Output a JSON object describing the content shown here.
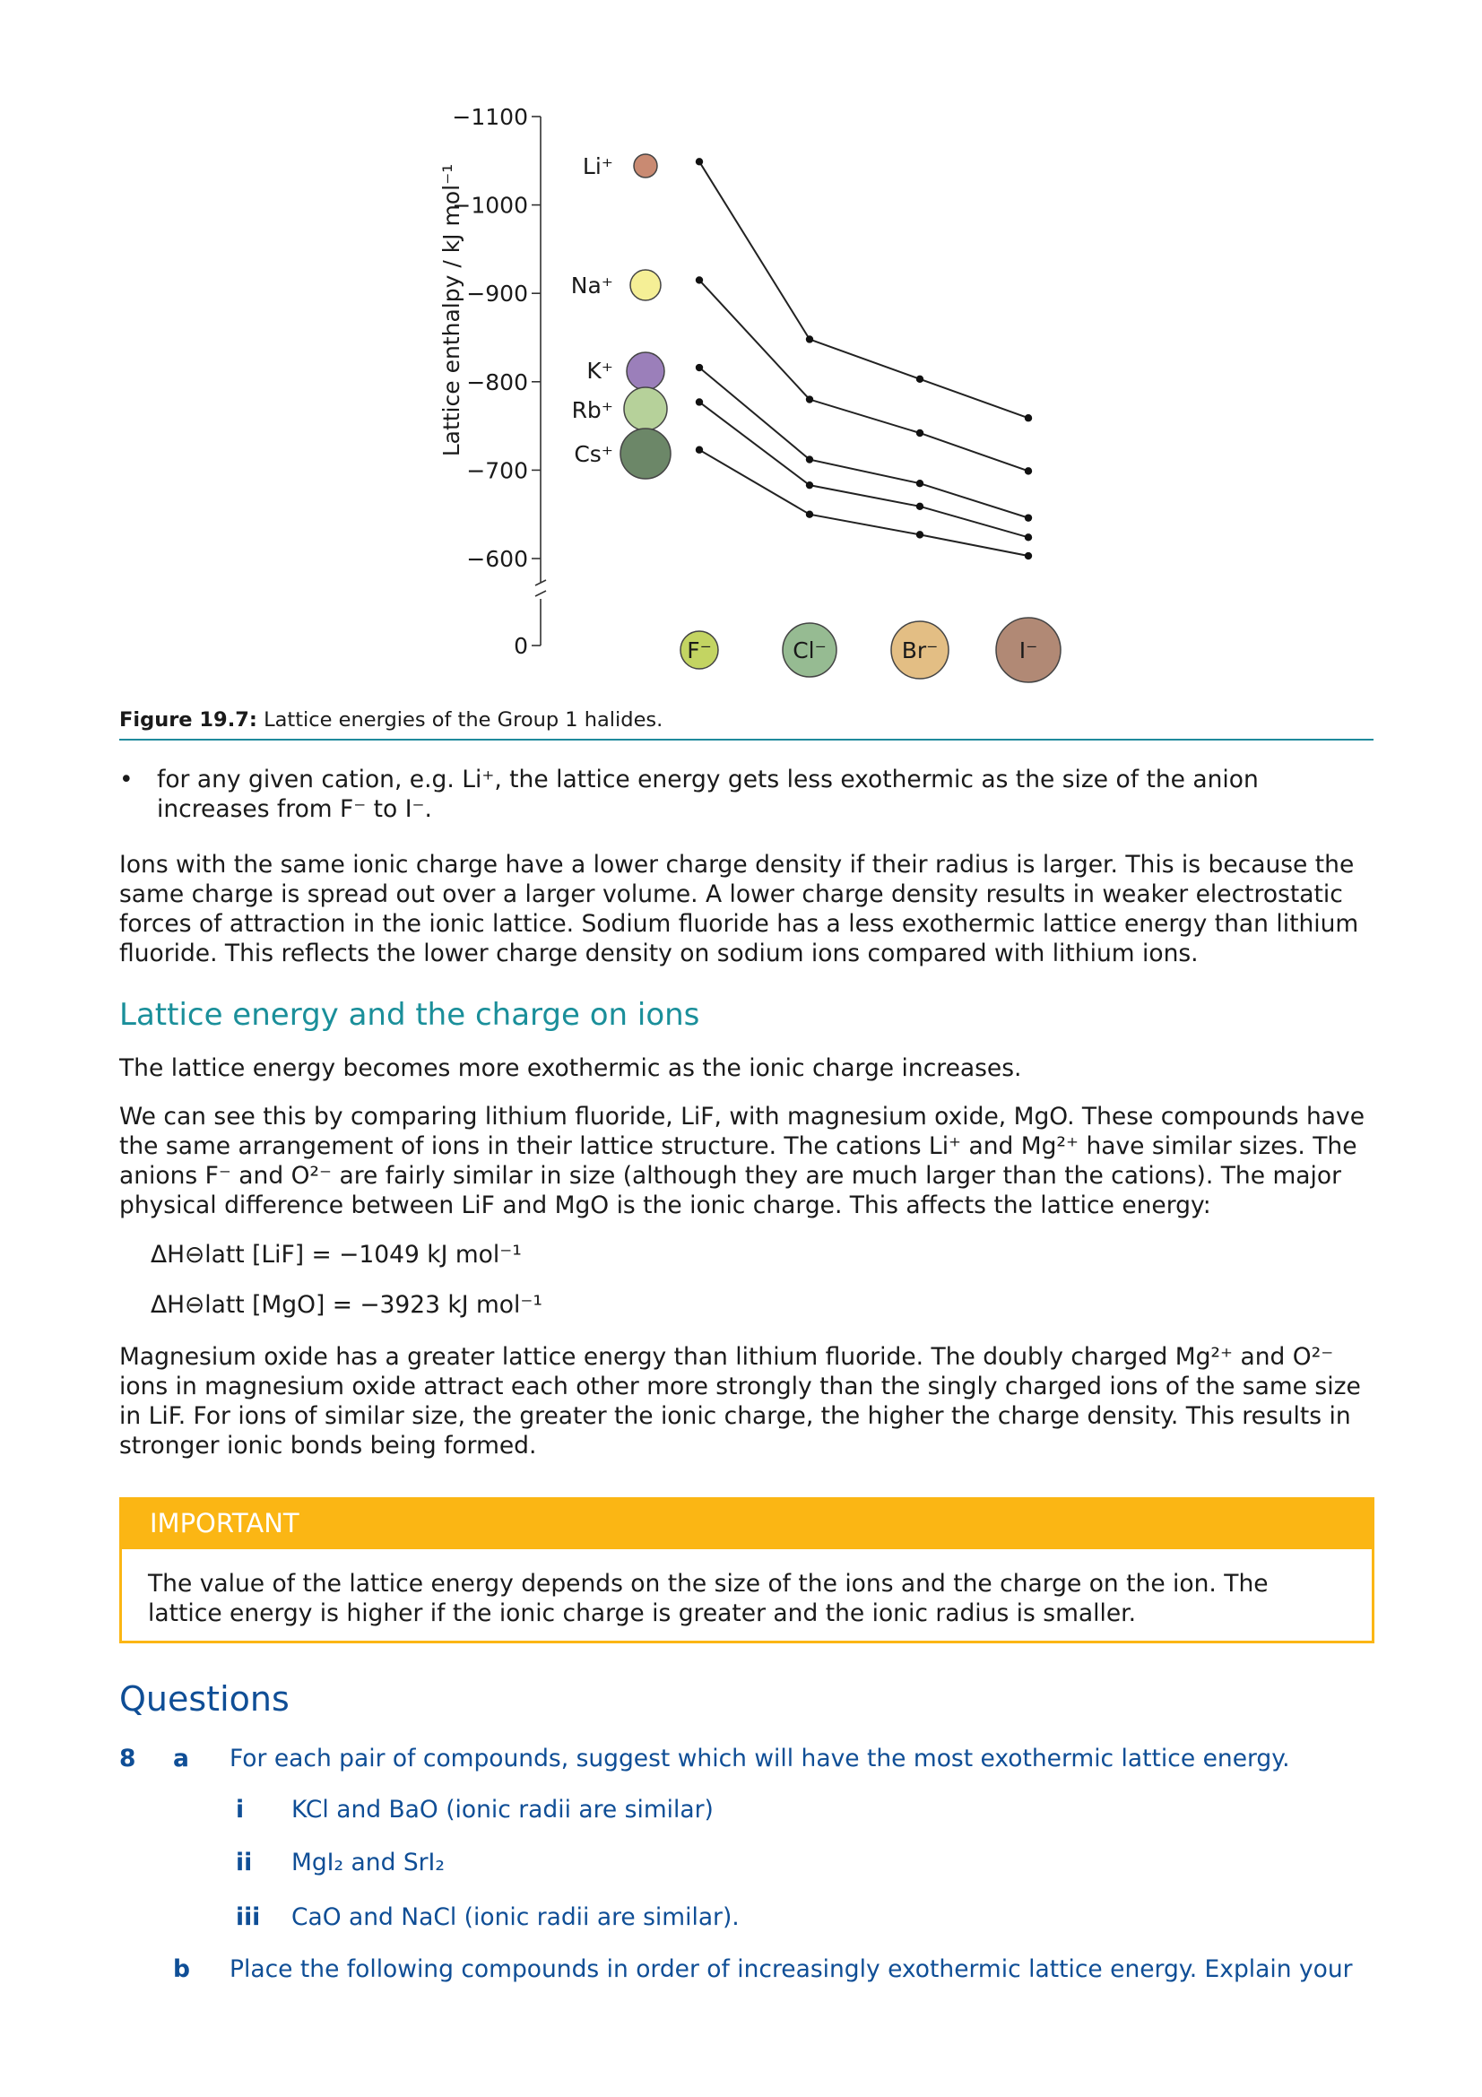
{
  "chart_data": {
    "type": "line",
    "ylabel": "Lattice enthalpy / kJ mol⁻¹",
    "yticks": [
      "−1100",
      "−1000",
      "−900",
      "−800",
      "−700",
      "−600",
      "0"
    ],
    "y_axis_break": true,
    "categories": [
      "F⁻",
      "Cl⁻",
      "Br⁻",
      "I⁻"
    ],
    "series": [
      {
        "name": "Li⁺",
        "values": [
          -1049,
          -848,
          -803,
          -759
        ],
        "color": "#c98a72",
        "radius": 13
      },
      {
        "name": "Na⁺",
        "values": [
          -915,
          -780,
          -742,
          -699
        ],
        "color": "#f5ef96",
        "radius": 17
      },
      {
        "name": "K⁺",
        "values": [
          -816,
          -712,
          -685,
          -646
        ],
        "color": "#9b7fba",
        "radius": 21
      },
      {
        "name": "Rb⁺",
        "values": [
          -777,
          -683,
          -659,
          -624
        ],
        "color": "#b6d19a",
        "radius": 24
      },
      {
        "name": "Cs⁺",
        "values": [
          -723,
          -650,
          -627,
          -603
        ],
        "color": "#6c8768",
        "radius": 28
      }
    ],
    "anions": [
      {
        "label": "F⁻",
        "color": "#c3d462",
        "radius": 21
      },
      {
        "label": "Cl⁻",
        "color": "#96bb92",
        "radius": 30
      },
      {
        "label": "Br⁻",
        "color": "#e3be84",
        "radius": 32
      },
      {
        "label": "I⁻",
        "color": "#b18975",
        "radius": 36
      }
    ]
  },
  "figure": {
    "label": "Figure 19.7:",
    "caption": "Lattice energies of the Group 1 halides."
  },
  "text": {
    "bullet_symbol": "•",
    "bullet": "for any given cation, e.g. Li⁺, the lattice energy gets less exothermic as the size of the anion increases from F⁻ to I⁻.",
    "para1": "Ions with the same ionic charge have a lower charge density if their radius is larger. This is because the same charge is spread out over a larger volume. A lower charge density results in weaker electrostatic forces of attraction in the ionic lattice. Sodium fluoride has a less exothermic lattice energy than lithium fluoride. This reflects the lower charge density on sodium ions compared with lithium ions.",
    "heading": "Lattice energy and the charge on ions",
    "para2": "The lattice energy becomes more exothermic as the ionic charge increases.",
    "para3": "We can see this by comparing lithium fluoride, LiF, with magnesium oxide, MgO. These compounds have the same arrangement of ions in their lattice structure. The cations Li⁺ and Mg²⁺ have similar sizes. The anions F⁻ and O²⁻ are fairly similar in size (although they are much larger than the cations). The major physical difference between LiF and MgO is the ionic charge. This affects the lattice energy:",
    "eq1": "ΔH⊖latt [LiF] = −1049 kJ mol⁻¹",
    "eq2": "ΔH⊖latt [MgO] = −3923 kJ mol⁻¹",
    "para4": "Magnesium oxide has a greater lattice energy than lithium fluoride. The doubly charged Mg²⁺ and O²⁻ ions in magnesium oxide attract each other more strongly than the singly charged ions of the same size in LiF. For ions of similar size, the greater the ionic charge, the higher the charge density. This results in stronger ionic bonds being formed."
  },
  "important": {
    "title": "IMPORTANT",
    "body": "The value of the lattice energy depends on the size of the ions and the charge on the ion. The lattice energy is higher if the ionic charge is greater and the ionic radius is smaller."
  },
  "questions": {
    "heading": "Questions",
    "q8_num": "8",
    "a_label": "a",
    "a_text": "For each pair of compounds, suggest which will have the most exothermic lattice energy.",
    "i_label": "i",
    "i_text": "KCl and BaO (ionic radii are similar)",
    "ii_label": "ii",
    "ii_text": "MgI₂ and SrI₂",
    "iii_label": "iii",
    "iii_text": "CaO and NaCl (ionic radii are similar).",
    "b_label": "b",
    "b_text": "Place the following compounds in order of increasingly exothermic lattice energy. Explain your"
  }
}
